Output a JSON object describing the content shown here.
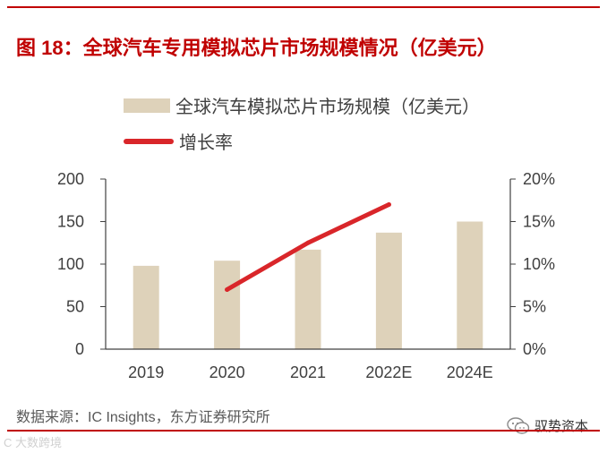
{
  "header": {
    "title": "图 18：全球汽车专用模拟芯片市场规模情况（亿美元）"
  },
  "legend": {
    "bar_label": "全球汽车模拟芯片市场规模（亿美元）",
    "line_label": "增长率"
  },
  "chart_data": {
    "type": "bar+line",
    "title": "全球汽车专用模拟芯片市场规模情况（亿美元）",
    "categories": [
      "2019",
      "2020",
      "2021",
      "2022E",
      "2024E"
    ],
    "series": [
      {
        "name": "全球汽车模拟芯片市场规模（亿美元）",
        "type": "bar",
        "axis": "left",
        "values": [
          98,
          104,
          117,
          137,
          150
        ]
      },
      {
        "name": "增长率",
        "type": "line",
        "axis": "right",
        "values": [
          null,
          0.07,
          0.125,
          0.17,
          null
        ]
      }
    ],
    "y_left": {
      "min": 0,
      "max": 200,
      "ticks": [
        "0",
        "50",
        "100",
        "150",
        "200"
      ]
    },
    "y_right": {
      "min": 0,
      "max": 0.2,
      "ticks": [
        "0%",
        "5%",
        "10%",
        "15%",
        "20%"
      ]
    },
    "colors": {
      "bar": "#ded2ba",
      "line": "#d9262a",
      "axis": "#404040"
    }
  },
  "footer": {
    "source": "数据来源：IC Insights，东方证券研究所",
    "wechat_label": "驭势资本",
    "watermark": "C 大数跨境"
  }
}
